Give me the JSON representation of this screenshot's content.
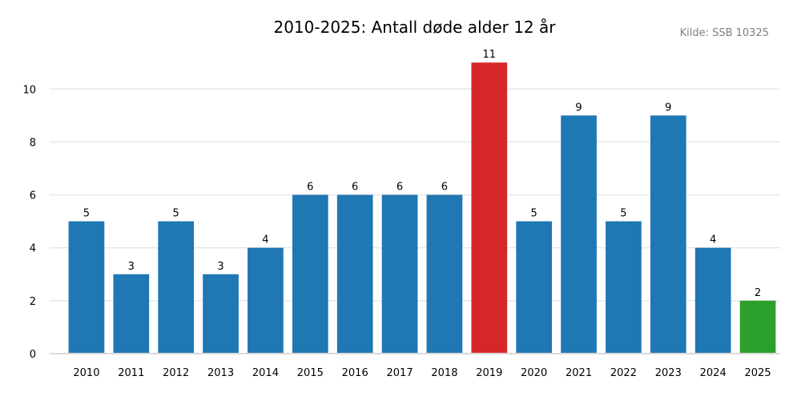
{
  "chart_data": {
    "type": "bar",
    "title": "2010-2025: Antall døde alder 12 år",
    "source": "Kilde: SSB 10325",
    "xlabel": "",
    "ylabel": "",
    "categories": [
      "2010",
      "2011",
      "2012",
      "2013",
      "2014",
      "2015",
      "2016",
      "2017",
      "2018",
      "2019",
      "2020",
      "2021",
      "2022",
      "2023",
      "2024",
      "2025"
    ],
    "values": [
      5,
      3,
      5,
      3,
      4,
      6,
      6,
      6,
      6,
      11,
      5,
      9,
      5,
      9,
      4,
      2
    ],
    "bar_colors": [
      "#1f77b4",
      "#1f77b4",
      "#1f77b4",
      "#1f77b4",
      "#1f77b4",
      "#1f77b4",
      "#1f77b4",
      "#1f77b4",
      "#1f77b4",
      "#d62728",
      "#1f77b4",
      "#1f77b4",
      "#1f77b4",
      "#1f77b4",
      "#1f77b4",
      "#2ca02c"
    ],
    "ylim": [
      0,
      11.55
    ],
    "yticks": [
      0,
      2,
      4,
      6,
      8,
      10
    ],
    "grid": true,
    "gridColor": "#e8e8e8",
    "axisColor": "#d9d9d9"
  }
}
